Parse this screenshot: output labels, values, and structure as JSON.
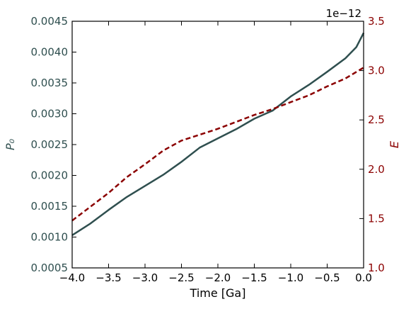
{
  "chart_data": {
    "type": "line",
    "xlabel": "Time  [Ga]",
    "xlim": [
      -4.0,
      0.0
    ],
    "x_ticks": [
      "−4.0",
      "−3.5",
      "−3.0",
      "−2.5",
      "−2.0",
      "−1.5",
      "−1.0",
      "−0.5",
      "0.0"
    ],
    "y_left": {
      "label": "P₀",
      "lim": [
        0.0005,
        0.0045
      ],
      "ticks": [
        "0.0005",
        "0.0010",
        "0.0015",
        "0.0020",
        "0.0025",
        "0.0030",
        "0.0035",
        "0.0040",
        "0.0045"
      ],
      "color": "#2f4f4f"
    },
    "y_right": {
      "label": "E",
      "lim": [
        1.0,
        3.5
      ],
      "ticks": [
        "1.0",
        "1.5",
        "2.0",
        "2.5",
        "3.0",
        "3.5"
      ],
      "offset_text": "1e−12",
      "color": "#8b0000"
    },
    "series": [
      {
        "axis": "left",
        "style": "solid",
        "color": "#2f4f4f",
        "x": [
          -4.0,
          -3.75,
          -3.5,
          -3.25,
          -3.0,
          -2.75,
          -2.5,
          -2.25,
          -2.0,
          -1.75,
          -1.5,
          -1.25,
          -1.0,
          -0.75,
          -0.5,
          -0.25,
          -0.1,
          0.0
        ],
        "y": [
          0.00103,
          0.00122,
          0.00144,
          0.00165,
          0.00183,
          0.00201,
          0.00222,
          0.00245,
          0.0026,
          0.00275,
          0.00292,
          0.00305,
          0.00328,
          0.00347,
          0.00368,
          0.0039,
          0.00408,
          0.00431
        ]
      },
      {
        "axis": "right",
        "style": "dashed",
        "color": "#8b0000",
        "x": [
          -4.0,
          -3.75,
          -3.5,
          -3.25,
          -3.0,
          -2.75,
          -2.5,
          -2.25,
          -2.0,
          -1.75,
          -1.5,
          -1.25,
          -1.0,
          -0.75,
          -0.5,
          -0.25,
          0.0
        ],
        "y": [
          1.48,
          1.62,
          1.76,
          1.92,
          2.05,
          2.19,
          2.29,
          2.35,
          2.41,
          2.48,
          2.55,
          2.61,
          2.68,
          2.75,
          2.84,
          2.92,
          3.03
        ]
      }
    ]
  }
}
